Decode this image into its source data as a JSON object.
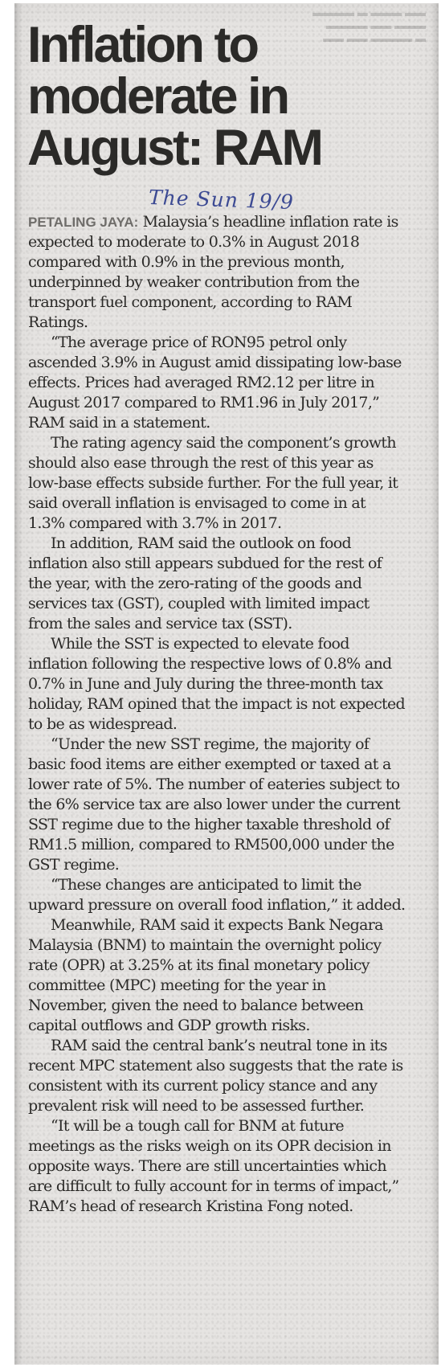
{
  "article": {
    "headline": "Inflation to\nmoderate in\nAugust: RAM",
    "annotation": "The Sun 19/9",
    "dateline": "PETALING JAYA:",
    "paragraphs": [
      "Malaysia’s headline inflation rate is expected to moderate to 0.3% in August 2018 compared with 0.9% in the previous month, underpinned by weaker contribution from the transport fuel component, according to RAM Ratings.",
      "“The average price of RON95 petrol only ascended 3.9% in August amid dissipating low-base effects. Prices had averaged RM2.12 per litre in August 2017 compared to RM1.96 in July 2017,” RAM said in a statement.",
      "The rating agency said the component’s growth should also ease through the rest of this year as low-base effects subside further. For the full year, it said overall inflation is envisaged to come in at 1.3% compared with 3.7% in 2017.",
      "In addition, RAM said the outlook on food inflation also still appears subdued for the rest of the year, with the zero-rating of the goods and services tax (GST), coupled with limited impact from the sales and service tax (SST).",
      "While the SST is expected to elevate food inflation following the respective lows of 0.8% and 0.7% in June and July during the three-month tax holiday, RAM opined that the impact is not expected to be as widespread.",
      "“Under the new SST regime, the majority of basic food items are either exempted or taxed at a lower rate of 5%. The number of eateries subject to the 6% service tax are also lower under the current SST regime due to the higher taxable threshold of RM1.5 million, compared to RM500,000 under the GST regime.",
      "“These changes are anticipated to limit the upward pressure on overall food inflation,” it added.",
      "Meanwhile, RAM said it expects Bank Negara Malaysia (BNM) to maintain the overnight policy rate (OPR) at 3.25% at its final monetary policy committee (MPC) meeting for the year in November, given the need to balance between capital outflows and GDP growth risks.",
      "RAM said the central bank’s neutral tone in its recent MPC statement also suggests that the rate is consistent with its current policy stance and any prevalent risk will need to be assessed further.",
      "“It will be a tough call for BNM at future meetings as the risks weigh on its OPR decision in opposite ways. There are still uncertainties which are difficult to fully account for in terms of impact,” RAM’s head of research Kristina Fong noted."
    ]
  }
}
